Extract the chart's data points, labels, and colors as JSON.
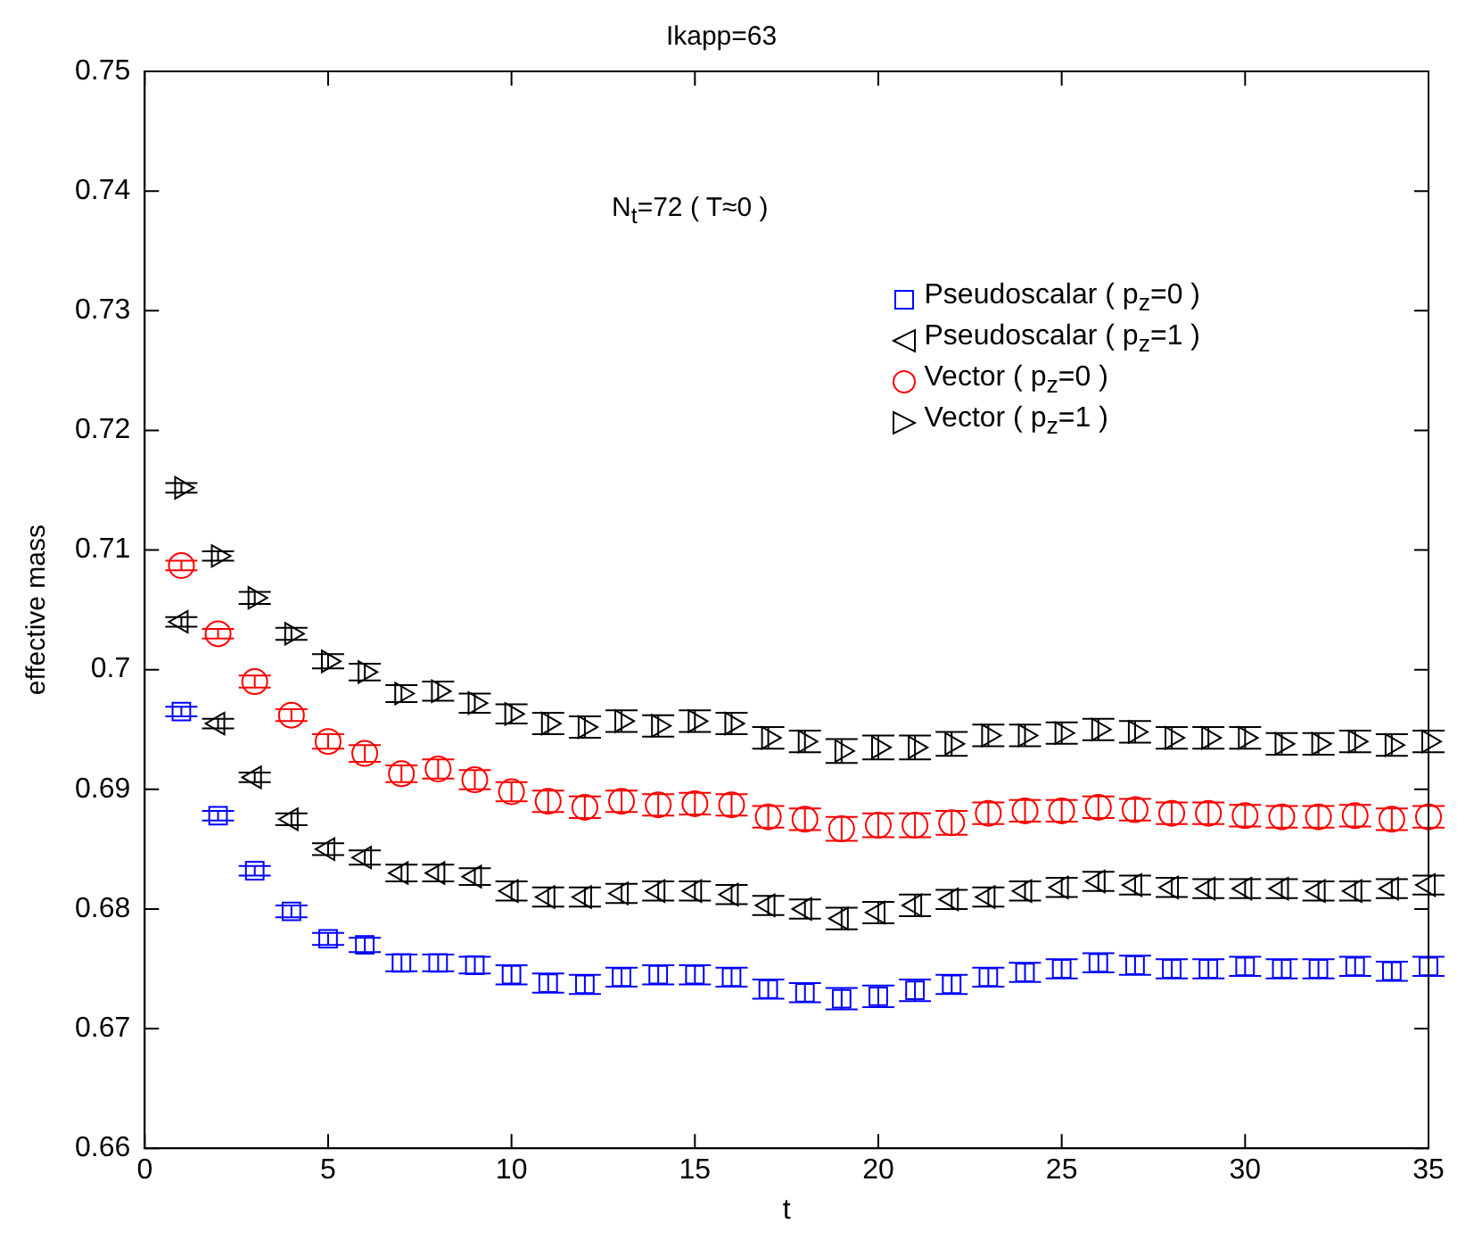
{
  "chart_data": {
    "type": "scatter",
    "title": "Ikapp=63",
    "xlabel": "t",
    "ylabel": "effective mass",
    "annotations": [
      "N$_{t}$=72 ( T≈0 )"
    ],
    "x": [
      1,
      2,
      3,
      4,
      5,
      6,
      7,
      8,
      9,
      10,
      11,
      12,
      13,
      14,
      15,
      16,
      17,
      18,
      19,
      20,
      21,
      22,
      23,
      24,
      25,
      26,
      27,
      28,
      29,
      30,
      31,
      32,
      33,
      34,
      35
    ],
    "xlim": [
      0,
      35
    ],
    "xticks": [
      0,
      5,
      10,
      15,
      20,
      25,
      30,
      35
    ],
    "ylim": [
      0.66,
      0.75
    ],
    "yticks": [
      0.66,
      0.67,
      0.68,
      0.69,
      0.7,
      0.71,
      0.72,
      0.73,
      0.74,
      0.75
    ],
    "grid": false,
    "legend": "top right",
    "series": [
      {
        "name": "Pseudoscalar ( p$_{z}$=0 )",
        "color": "#0000ff",
        "marker": "square",
        "values": [
          0.6965,
          0.6878,
          0.6832,
          0.6798,
          0.6775,
          0.677,
          0.6755,
          0.6755,
          0.6753,
          0.6745,
          0.6738,
          0.6737,
          0.6743,
          0.6745,
          0.6745,
          0.6743,
          0.6733,
          0.673,
          0.6725,
          0.6727,
          0.6732,
          0.6737,
          0.6743,
          0.6747,
          0.675,
          0.6755,
          0.6753,
          0.675,
          0.675,
          0.6752,
          0.675,
          0.675,
          0.6752,
          0.6748,
          0.6752
        ],
        "errors": [
          0.0004,
          0.0004,
          0.0004,
          0.0005,
          0.0005,
          0.0006,
          0.0007,
          0.0007,
          0.0007,
          0.0008,
          0.0008,
          0.0008,
          0.0008,
          0.0008,
          0.0008,
          0.0008,
          0.0008,
          0.0008,
          0.0009,
          0.0009,
          0.0009,
          0.0008,
          0.0008,
          0.0008,
          0.0008,
          0.0008,
          0.0008,
          0.0008,
          0.0008,
          0.0008,
          0.0008,
          0.0008,
          0.0008,
          0.0008,
          0.0008
        ]
      },
      {
        "name": "Pseudoscalar ( p$_{z}$=1 )",
        "color": "#000000",
        "marker": "triangle",
        "values": [
          0.704,
          0.6955,
          0.691,
          0.6875,
          0.685,
          0.6843,
          0.683,
          0.683,
          0.6827,
          0.6815,
          0.681,
          0.681,
          0.6813,
          0.6815,
          0.6815,
          0.6812,
          0.6803,
          0.68,
          0.6792,
          0.6797,
          0.6803,
          0.6808,
          0.681,
          0.6815,
          0.6818,
          0.6823,
          0.682,
          0.6818,
          0.6817,
          0.6817,
          0.6817,
          0.6815,
          0.6815,
          0.6817,
          0.682
        ],
        "errors": [
          0.0004,
          0.0004,
          0.0004,
          0.0005,
          0.0005,
          0.0006,
          0.0007,
          0.0007,
          0.0007,
          0.0008,
          0.0008,
          0.0008,
          0.0008,
          0.0008,
          0.0008,
          0.0008,
          0.0008,
          0.0008,
          0.0009,
          0.0009,
          0.0009,
          0.0008,
          0.0008,
          0.0008,
          0.0008,
          0.0008,
          0.0008,
          0.0008,
          0.0008,
          0.0008,
          0.0008,
          0.0008,
          0.0008,
          0.0008,
          0.0008
        ]
      },
      {
        "name": "Vector ( p$_{z}$=0 )",
        "color": "#ff0000",
        "marker": "circle",
        "values": [
          0.7087,
          0.703,
          0.699,
          0.6962,
          0.694,
          0.693,
          0.6913,
          0.6917,
          0.6908,
          0.6898,
          0.689,
          0.6885,
          0.689,
          0.6887,
          0.6888,
          0.6887,
          0.6877,
          0.6875,
          0.6867,
          0.687,
          0.687,
          0.6872,
          0.688,
          0.6882,
          0.6882,
          0.6885,
          0.6883,
          0.688,
          0.688,
          0.6878,
          0.6877,
          0.6877,
          0.6878,
          0.6875,
          0.6877
        ],
        "errors": [
          0.0004,
          0.0004,
          0.0005,
          0.0005,
          0.0006,
          0.0007,
          0.0007,
          0.0008,
          0.0008,
          0.0008,
          0.0009,
          0.0009,
          0.0009,
          0.0009,
          0.0009,
          0.0009,
          0.0009,
          0.0009,
          0.001,
          0.001,
          0.001,
          0.001,
          0.0009,
          0.0009,
          0.0009,
          0.0009,
          0.0009,
          0.0009,
          0.0009,
          0.0009,
          0.0009,
          0.0009,
          0.0009,
          0.0009,
          0.0009
        ]
      },
      {
        "name": "Vector ( p$_{z}$=1 )",
        "color": "#000000",
        "marker": "triangle",
        "values": [
          0.7152,
          0.7095,
          0.706,
          0.703,
          0.7007,
          0.6998,
          0.698,
          0.6982,
          0.6972,
          0.6963,
          0.6955,
          0.6952,
          0.6957,
          0.6953,
          0.6957,
          0.6955,
          0.6943,
          0.694,
          0.6932,
          0.6935,
          0.6935,
          0.6938,
          0.6945,
          0.6945,
          0.6947,
          0.695,
          0.6948,
          0.6943,
          0.6943,
          0.6943,
          0.6938,
          0.6938,
          0.694,
          0.6937,
          0.694
        ],
        "errors": [
          0.0004,
          0.0004,
          0.0005,
          0.0005,
          0.0006,
          0.0007,
          0.0007,
          0.0008,
          0.0008,
          0.0008,
          0.0009,
          0.0009,
          0.0009,
          0.0009,
          0.0009,
          0.0009,
          0.0009,
          0.0009,
          0.001,
          0.001,
          0.001,
          0.001,
          0.0009,
          0.0009,
          0.0009,
          0.0009,
          0.0009,
          0.0009,
          0.0009,
          0.0009,
          0.0009,
          0.0009,
          0.0009,
          0.0009,
          0.0009
        ]
      }
    ]
  }
}
